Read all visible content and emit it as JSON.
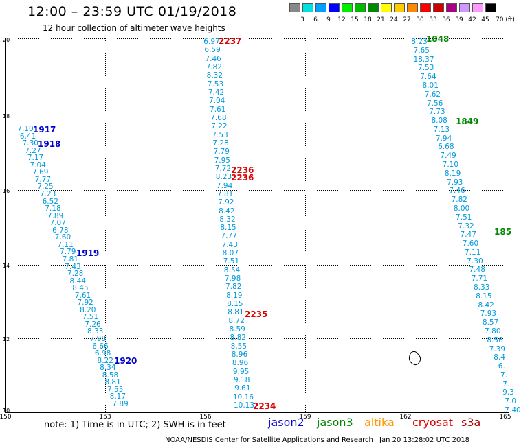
{
  "header": {
    "title": "12:00 – 23:59 UTC 01/19/2018",
    "subtitle": "12 hour collection of altimeter wave heights"
  },
  "legend": {
    "colors": [
      "#888888",
      "#00e0e0",
      "#00a0ff",
      "#0000ff",
      "#00ee00",
      "#00bb00",
      "#008800",
      "#ffff00",
      "#ffcc00",
      "#ff8800",
      "#ff0000",
      "#cc0000",
      "#aa0088",
      "#cc99ff",
      "#ff99ff",
      "#000000"
    ],
    "ticks": [
      "3",
      "6",
      "9",
      "12",
      "15",
      "18",
      "21",
      "24",
      "27",
      "30",
      "33",
      "36",
      "39",
      "42",
      "45",
      "70 (ft)"
    ]
  },
  "axes": {
    "lat_ticks": [
      "20",
      "18",
      "16",
      "14",
      "12",
      "10"
    ],
    "lon_ticks": [
      "150",
      "153",
      "156",
      "159",
      "162",
      "165"
    ]
  },
  "satellite_colors": {
    "jason2": "#0000cc",
    "jason3": "#008800",
    "altika": "#ff9900",
    "cryosat": "#dd0000",
    "s3a": "#aa0000",
    "light": "#0099dd"
  },
  "tracks": [
    {
      "id": "left",
      "color": "#0099dd",
      "values": [
        "7.10",
        "6.41",
        "7.30",
        "7.27",
        "7.17",
        "7.04",
        "7.69",
        "7.77",
        "7.25",
        "7.23",
        "6.52",
        "7.18",
        "7.89",
        "7.07",
        "6.78",
        "7.60",
        "7.11",
        "7.79",
        "7.81",
        "7.43",
        "7.28",
        "8.44",
        "8.45",
        "7.61",
        "7.92",
        "8.20",
        "7.51",
        "7.26",
        "8.33",
        "7.98",
        "6.66",
        "6.98",
        "8.22",
        "8.34",
        "8.58",
        "8.81",
        "7.55",
        "8.17",
        "7.89"
      ],
      "time_labels": [
        {
          "text": "1917",
          "color": "#0000cc"
        },
        {
          "text": "1918",
          "color": "#0000cc"
        },
        {
          "text": "1919",
          "color": "#0000cc"
        },
        {
          "text": "1920",
          "color": "#0000cc"
        }
      ]
    },
    {
      "id": "center",
      "color": "#0099dd",
      "values": [
        "6.97",
        "6.59",
        "7.46",
        "7.82",
        "8.32",
        "7.53",
        "7.42",
        "7.04",
        "7.61",
        "7.68",
        "7.22",
        "7.53",
        "7.28",
        "7.79",
        "7.95",
        "7.72",
        "8.23",
        "7.94",
        "7.81",
        "7.92",
        "8.42",
        "8.32",
        "8.15",
        "7.77",
        "7.43",
        "8.07",
        "7.51",
        "8.54",
        "7.98",
        "7.82",
        "8.19",
        "8.15",
        "8.81",
        "8.72",
        "8.59",
        "8.82",
        "8.55",
        "8.96",
        "8.96",
        "9.95",
        "9.18",
        "9.61",
        "10.16",
        "10.13"
      ],
      "time_labels": [
        {
          "text": "2237",
          "color": "#dd0000"
        },
        {
          "text": "2236",
          "color": "#dd0000"
        },
        {
          "text": "2236",
          "color": "#dd0000"
        },
        {
          "text": "2235",
          "color": "#dd0000"
        },
        {
          "text": "2234",
          "color": "#dd0000"
        }
      ]
    },
    {
      "id": "right",
      "color": "#0099dd",
      "values": [
        "8.23",
        "7.65",
        "18.37",
        "7.53",
        "7.64",
        "8.01",
        "7.62",
        "7.56",
        "7.73",
        "8.08",
        "7.13",
        "7.94",
        "6.68",
        "7.49",
        "7.10",
        "8.19",
        "7.93",
        "7.46",
        "7.82",
        "8.00",
        "7.51",
        "7.32",
        "7.47",
        "7.60",
        "7.11",
        "7.30",
        "7.48",
        "7.71",
        "8.33",
        "8.15",
        "8.42",
        "7.93",
        "8.57",
        "7.80",
        "8.56",
        "7.39",
        "8.4",
        "6.",
        "7.",
        "7.",
        "9.3",
        "7.0",
        "7.40"
      ],
      "time_labels": [
        {
          "text": "1848",
          "color": "#008800"
        },
        {
          "text": "1849",
          "color": "#008800"
        },
        {
          "text": "185",
          "color": "#008800"
        }
      ]
    }
  ],
  "footer": {
    "note": "note:  1) Time is in UTC;  2) SWH is in feet",
    "satellites": [
      "jason2",
      "jason3",
      "altika",
      "cryosat",
      "s3a"
    ],
    "credit": "NOAA/NESDIS Center for Satellite Applications and Research",
    "generated": "Jan 20 13:28:02 UTC 2018"
  }
}
